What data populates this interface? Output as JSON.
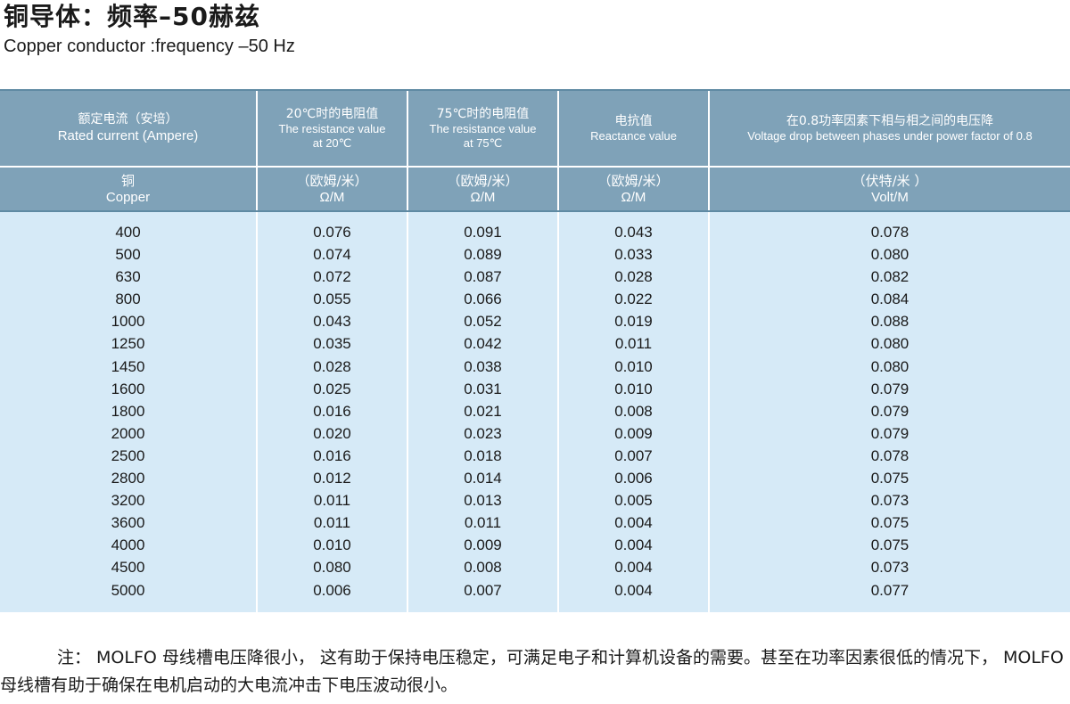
{
  "title": {
    "cn": "铜导体：频率–50赫兹",
    "en": "Copper conductor :frequency –50 Hz"
  },
  "table": {
    "headers": [
      {
        "cn": "额定电流（安培）",
        "en": "Rated current (Ampere)",
        "sub_cn": "铜",
        "sub_en": "Copper"
      },
      {
        "cn": "20℃时的电阻值",
        "en": "The resistance value",
        "en2": "at 20℃",
        "sub_cn": "（欧姆/米）",
        "sub_en": "Ω/M"
      },
      {
        "cn": "75℃时的电阻值",
        "en": "The resistance value",
        "en2": "at 75℃",
        "sub_cn": "（欧姆/米）",
        "sub_en": "Ω/M"
      },
      {
        "cn": "电抗值",
        "en": "Reactance  value",
        "sub_cn": "（欧姆/米）",
        "sub_en": "Ω/M"
      },
      {
        "cn": "在0.8功率因素下相与相之间的电压降",
        "en": "Voltage drop between phases under power factor of 0.8",
        "sub_cn": "（伏特/米 ）",
        "sub_en": "Volt/M"
      }
    ],
    "rows": [
      [
        "400",
        "0.076",
        "0.091",
        "0.043",
        "0.078"
      ],
      [
        "500",
        "0.074",
        "0.089",
        "0.033",
        "0.080"
      ],
      [
        "630",
        "0.072",
        "0.087",
        "0.028",
        "0.082"
      ],
      [
        "800",
        "0.055",
        "0.066",
        "0.022",
        "0.084"
      ],
      [
        "1000",
        "0.043",
        "0.052",
        "0.019",
        "0.088"
      ],
      [
        "1250",
        "0.035",
        "0.042",
        "0.011",
        "0.080"
      ],
      [
        "1450",
        "0.028",
        "0.038",
        "0.010",
        "0.080"
      ],
      [
        "1600",
        "0.025",
        "0.031",
        "0.010",
        "0.079"
      ],
      [
        "1800",
        "0.016",
        "0.021",
        "0.008",
        "0.079"
      ],
      [
        "2000",
        "0.020",
        "0.023",
        "0.009",
        "0.079"
      ],
      [
        "2500",
        "0.016",
        "0.018",
        "0.007",
        "0.078"
      ],
      [
        "2800",
        "0.012",
        "0.014",
        "0.006",
        "0.075"
      ],
      [
        "3200",
        "0.011",
        "0.013",
        "0.005",
        "0.073"
      ],
      [
        "3600",
        "0.011",
        "0.011",
        "0.004",
        "0.075"
      ],
      [
        "4000",
        "0.010",
        "0.009",
        "0.004",
        "0.075"
      ],
      [
        "4500",
        "0.080",
        "0.008",
        "0.004",
        "0.073"
      ],
      [
        "5000",
        "0.006",
        "0.007",
        "0.004",
        "0.077"
      ]
    ]
  },
  "note": "注： MOLFO 母线槽电压降很小， 这有助于保持电压稳定，可满足电子和计算机设备的需要。甚至在功率因素很低的情况下， MOLFO母线槽有助于确保在电机启动的大电流冲击下电压波动很小。",
  "colors": {
    "header_bg": "#7fa2b8",
    "body_bg": "#d6eaf7"
  }
}
